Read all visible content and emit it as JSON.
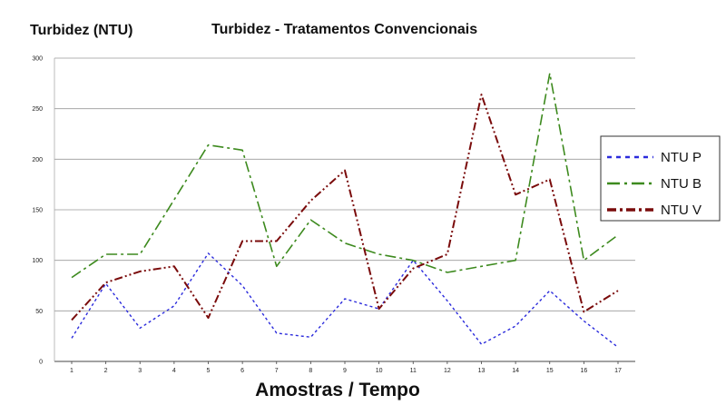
{
  "chart_data": {
    "type": "line",
    "title": "Turbidez - Tratamentos Convencionais",
    "ylabel": "Turbidez (NTU)",
    "xlabel": "Amostras / Tempo",
    "x": [
      1,
      2,
      3,
      4,
      5,
      6,
      7,
      8,
      9,
      10,
      11,
      12,
      13,
      14,
      15,
      16,
      17
    ],
    "x_tick_labels": [
      "1",
      "2",
      "3",
      "4",
      "5",
      "6",
      "7",
      "8",
      "9",
      "10",
      "11",
      "12",
      "13",
      "14",
      "15",
      "16",
      "17"
    ],
    "y_ticks": [
      0,
      50,
      100,
      150,
      200,
      250,
      300
    ],
    "ylim": [
      0,
      300
    ],
    "grid": "horizontal",
    "legend_position": "right",
    "series": [
      {
        "name": "NTU P",
        "color": "#2b2bdc",
        "style": "dotted",
        "values": [
          23,
          77,
          33,
          55,
          107,
          75,
          28,
          24,
          62,
          52,
          100,
          60,
          17,
          35,
          70,
          40,
          14
        ]
      },
      {
        "name": "NTU B",
        "color": "#3d8a1e",
        "style": "dash-dot",
        "values": [
          83,
          106,
          106,
          160,
          214,
          209,
          94,
          140,
          117,
          106,
          100,
          88,
          94,
          100,
          285,
          100,
          125
        ]
      },
      {
        "name": "NTU V",
        "color": "#7a0b0b",
        "style": "dash-dot-dot",
        "values": [
          41,
          78,
          89,
          94,
          43,
          119,
          119,
          159,
          189,
          52,
          92,
          106,
          264,
          165,
          180,
          49,
          70
        ]
      }
    ]
  }
}
